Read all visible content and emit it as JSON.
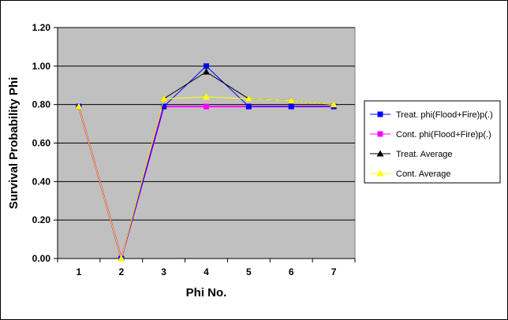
{
  "chart_data": {
    "type": "line",
    "x": [
      1,
      2,
      3,
      4,
      5,
      6,
      7
    ],
    "categories": [
      "1",
      "2",
      "3",
      "4",
      "5",
      "6",
      "7"
    ],
    "xlabel": "Phi No.",
    "ylabel": "Survival Probability Phi",
    "ylim": [
      0,
      1.2
    ],
    "yticks": [
      "0.00",
      "0.20",
      "0.40",
      "0.60",
      "0.80",
      "1.00",
      "1.20"
    ],
    "grid": true,
    "plot_background": "#c0c0c0",
    "legend_position": "right",
    "series": [
      {
        "name": "Treat. phi(Flood+Fire)p(.)",
        "color": "#0000ff",
        "marker": "square",
        "values": [
          0.79,
          0.0,
          0.79,
          1.0,
          0.79,
          0.79,
          0.79
        ]
      },
      {
        "name": "Cont. phi(Flood+Fire)p(.)",
        "color": "#ff00ff",
        "marker": "square",
        "values": [
          0.79,
          0.0,
          0.79,
          0.79,
          0.79,
          0.79,
          0.79
        ]
      },
      {
        "name": "Treat. Average",
        "color": "#000000",
        "marker": "triangle",
        "values": [
          0.79,
          0.0,
          0.83,
          0.97,
          0.83,
          0.82,
          0.8
        ]
      },
      {
        "name": "Cont. Average",
        "color": "#ffff00",
        "marker": "triangle",
        "values": [
          0.79,
          0.0,
          0.83,
          0.84,
          0.83,
          0.82,
          0.8
        ]
      }
    ]
  }
}
